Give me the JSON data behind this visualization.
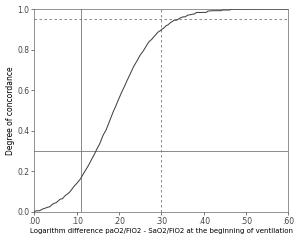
{
  "xlabel": "Logarithm difference paO2/FiO2 - SaO2/FiO2 at the beginning of ventilation",
  "ylabel": "Degree of concordance",
  "xlim": [
    0,
    60
  ],
  "ylim": [
    0.0,
    1.0
  ],
  "xticks": [
    0,
    10,
    20,
    30,
    40,
    50,
    60
  ],
  "xtick_labels": [
    ".00",
    ".10",
    ".20",
    ".30",
    ".40",
    ".50",
    ".60"
  ],
  "yticks": [
    0.0,
    0.2,
    0.4,
    0.6,
    0.8,
    1.0
  ],
  "ytick_labels": [
    "0.0",
    "0.2",
    "0.4",
    "0.6",
    "0.8",
    "1.0"
  ],
  "hline_solid_y": 0.3,
  "hline_dashed_y": 0.95,
  "vline_solid_x": 11,
  "vline_dashed_x": 30,
  "line_color": "#444444",
  "ref_line_color": "#777777",
  "background_color": "#ffffff",
  "xlabel_fontsize": 5.0,
  "ylabel_fontsize": 5.5,
  "tick_fontsize": 5.5,
  "curve_seed": 17,
  "curve_mu": 19,
  "curve_sigma": 7.5
}
